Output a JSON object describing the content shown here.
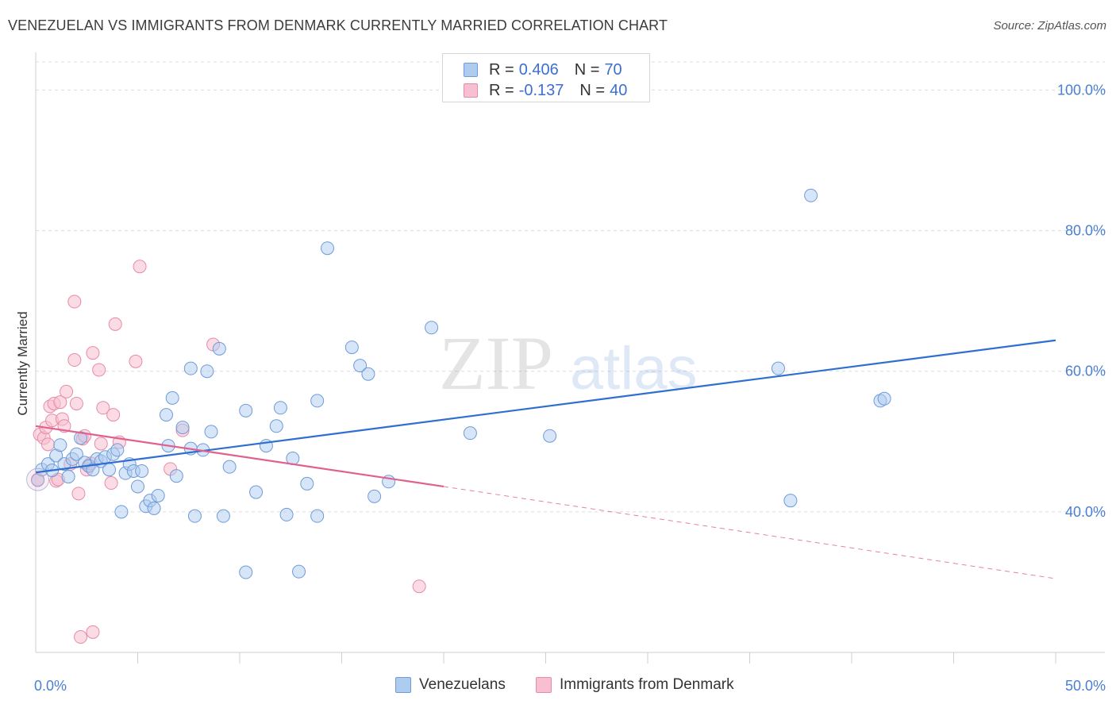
{
  "title": "VENEZUELAN VS IMMIGRANTS FROM DENMARK CURRENTLY MARRIED CORRELATION CHART",
  "source": "Source: ZipAtlas.com",
  "watermark": {
    "zip": "ZIP",
    "atlas": "atlas"
  },
  "colors": {
    "blue_fill": "#aecbf0",
    "blue_stroke": "#6f9bd8",
    "blue_line": "#2f6fd0",
    "pink_fill": "#f8bfd0",
    "pink_stroke": "#e88aa8",
    "pink_line": "#e0608e",
    "grid": "#dcdcdc",
    "tick_text": "#4a7fd4"
  },
  "legend": {
    "rows": [
      {
        "r_label": "R = ",
        "r_value": "0.406",
        "n_label": "N = ",
        "n_value": "70"
      },
      {
        "r_label": "R = ",
        "r_value": "-0.137",
        "n_label": "N = ",
        "n_value": "40"
      }
    ]
  },
  "bottom_legend": {
    "series1": "Venezuelans",
    "series2": "Immigrants from Denmark"
  },
  "chart_data": {
    "type": "scatter",
    "title": "VENEZUELAN VS IMMIGRANTS FROM DENMARK CURRENTLY MARRIED CORRELATION CHART",
    "xlabel": "",
    "ylabel": "Currently Married",
    "xlim": [
      0,
      50
    ],
    "ylim": [
      20,
      104
    ],
    "y_ticks": [
      40,
      60,
      80,
      100
    ],
    "y_tick_labels": [
      "40.0%",
      "60.0%",
      "80.0%",
      "100.0%"
    ],
    "x_tick_labels": [
      "0.0%",
      "50.0%"
    ],
    "x_tick_label_values": [
      0,
      50
    ],
    "grid": true,
    "legend_position": "top-center",
    "series": [
      {
        "name": "Venezuelans",
        "trend": {
          "x": [
            0,
            50
          ],
          "y": [
            45.6,
            64.4
          ],
          "style": "solid"
        },
        "points": [
          [
            0.1,
            44.5
          ],
          [
            0.3,
            46.0
          ],
          [
            0.6,
            46.8
          ],
          [
            0.8,
            45.9
          ],
          [
            1.0,
            48.0
          ],
          [
            1.2,
            49.5
          ],
          [
            1.4,
            46.8
          ],
          [
            1.6,
            45.0
          ],
          [
            1.8,
            47.5
          ],
          [
            2.0,
            48.2
          ],
          [
            2.2,
            50.5
          ],
          [
            2.4,
            47.0
          ],
          [
            2.6,
            46.5
          ],
          [
            2.8,
            46.0
          ],
          [
            3.0,
            47.5
          ],
          [
            3.2,
            47.2
          ],
          [
            3.4,
            47.8
          ],
          [
            3.6,
            46.0
          ],
          [
            3.8,
            48.2
          ],
          [
            4.0,
            48.8
          ],
          [
            4.2,
            40.0
          ],
          [
            4.4,
            45.5
          ],
          [
            4.6,
            46.8
          ],
          [
            4.8,
            45.8
          ],
          [
            5.0,
            43.6
          ],
          [
            5.2,
            45.8
          ],
          [
            5.4,
            40.8
          ],
          [
            5.6,
            41.6
          ],
          [
            5.8,
            40.5
          ],
          [
            6.0,
            42.3
          ],
          [
            6.4,
            53.8
          ],
          [
            6.5,
            49.4
          ],
          [
            6.7,
            56.2
          ],
          [
            6.9,
            45.1
          ],
          [
            7.2,
            52.0
          ],
          [
            7.6,
            49.0
          ],
          [
            7.6,
            60.4
          ],
          [
            7.8,
            39.4
          ],
          [
            8.2,
            48.8
          ],
          [
            8.4,
            60.0
          ],
          [
            8.6,
            51.4
          ],
          [
            9.0,
            63.2
          ],
          [
            9.2,
            39.4
          ],
          [
            9.5,
            46.4
          ],
          [
            10.3,
            31.4
          ],
          [
            10.3,
            54.4
          ],
          [
            10.8,
            42.8
          ],
          [
            11.3,
            49.4
          ],
          [
            11.8,
            52.2
          ],
          [
            12.0,
            54.8
          ],
          [
            12.3,
            39.6
          ],
          [
            12.6,
            47.6
          ],
          [
            12.9,
            31.5
          ],
          [
            13.3,
            44.0
          ],
          [
            13.8,
            39.4
          ],
          [
            13.8,
            55.8
          ],
          [
            14.3,
            77.5
          ],
          [
            15.5,
            63.4
          ],
          [
            15.9,
            60.8
          ],
          [
            16.3,
            59.6
          ],
          [
            16.6,
            42.2
          ],
          [
            17.3,
            44.3
          ],
          [
            19.4,
            66.2
          ],
          [
            21.3,
            51.2
          ],
          [
            25.2,
            50.8
          ],
          [
            36.4,
            60.4
          ],
          [
            37.0,
            41.6
          ],
          [
            38.0,
            85.0
          ],
          [
            41.4,
            55.8
          ],
          [
            41.6,
            56.1
          ]
        ]
      },
      {
        "name": "Immigrants from Denmark",
        "trend": {
          "x": [
            0,
            20
          ],
          "y": [
            52.2,
            43.6
          ],
          "style": "solid",
          "dashed_extension": {
            "x": [
              20,
              50
            ],
            "y": [
              43.6,
              30.5
            ]
          }
        },
        "points": [
          [
            0.1,
            44.6
          ],
          [
            0.2,
            51.0
          ],
          [
            0.4,
            50.5
          ],
          [
            0.5,
            52.0
          ],
          [
            0.6,
            49.6
          ],
          [
            0.7,
            55.0
          ],
          [
            0.8,
            53.0
          ],
          [
            0.9,
            55.4
          ],
          [
            1.0,
            44.4
          ],
          [
            1.1,
            44.6
          ],
          [
            1.2,
            55.6
          ],
          [
            1.3,
            53.2
          ],
          [
            1.4,
            52.2
          ],
          [
            1.5,
            57.1
          ],
          [
            1.7,
            46.8
          ],
          [
            1.9,
            61.6
          ],
          [
            1.9,
            69.9
          ],
          [
            2.0,
            55.4
          ],
          [
            2.1,
            42.6
          ],
          [
            2.2,
            22.2
          ],
          [
            2.3,
            50.4
          ],
          [
            2.4,
            50.8
          ],
          [
            2.5,
            46.0
          ],
          [
            2.6,
            46.6
          ],
          [
            2.7,
            46.9
          ],
          [
            2.8,
            22.9
          ],
          [
            2.8,
            62.6
          ],
          [
            3.1,
            60.2
          ],
          [
            3.2,
            49.7
          ],
          [
            3.3,
            54.8
          ],
          [
            3.7,
            44.1
          ],
          [
            3.8,
            53.8
          ],
          [
            3.9,
            66.7
          ],
          [
            4.1,
            49.9
          ],
          [
            4.9,
            61.4
          ],
          [
            5.1,
            74.9
          ],
          [
            6.6,
            46.1
          ],
          [
            7.2,
            51.6
          ],
          [
            8.7,
            63.8
          ],
          [
            18.8,
            29.4
          ]
        ]
      }
    ]
  }
}
